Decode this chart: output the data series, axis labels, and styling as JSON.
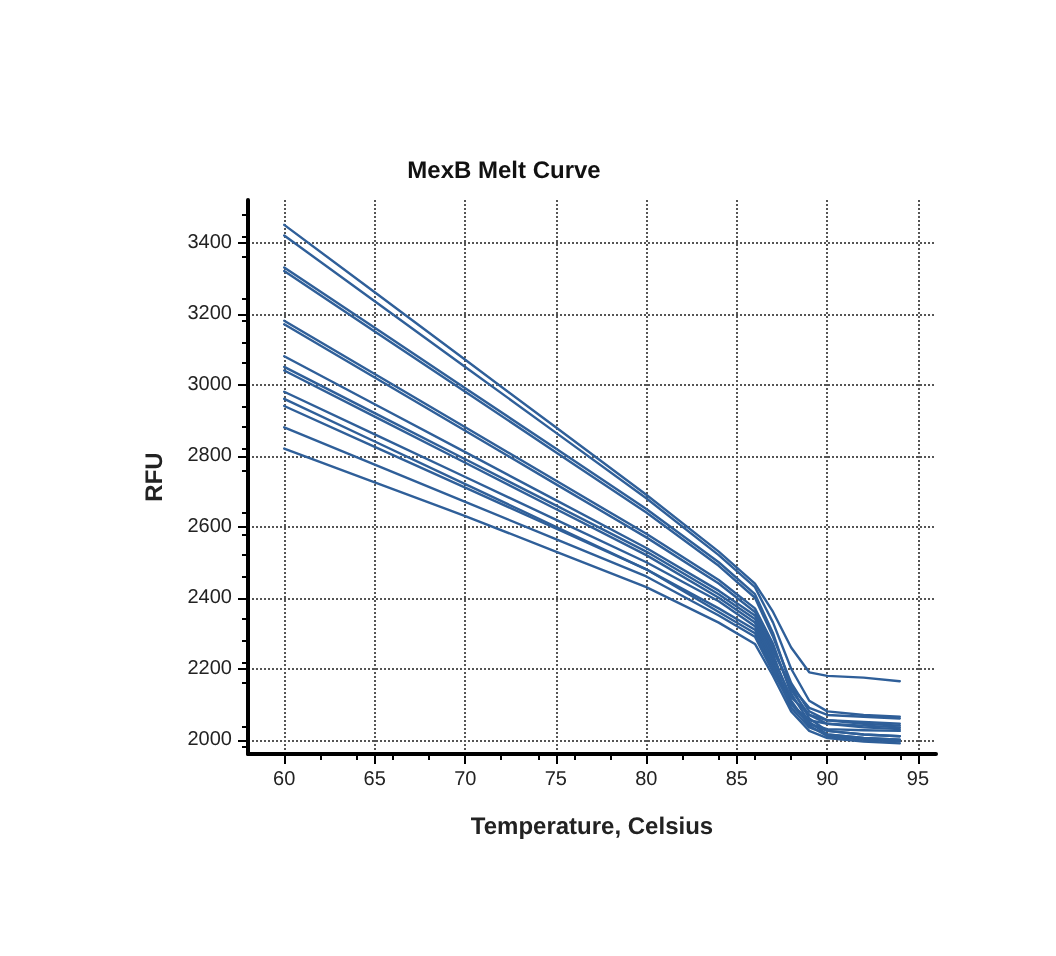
{
  "chart_data": {
    "type": "line",
    "title": "MexB Melt Curve",
    "xlabel": "Temperature, Celsius",
    "ylabel": "RFU",
    "x": [
      60,
      65,
      70,
      75,
      80,
      84,
      86,
      87,
      88,
      89,
      90,
      92,
      94
    ],
    "xlim": [
      58,
      96
    ],
    "xticks": [
      60,
      65,
      70,
      75,
      80,
      85,
      90,
      95
    ],
    "ylim": [
      1960,
      3520
    ],
    "yticks": [
      2000,
      2200,
      2400,
      2600,
      2800,
      3000,
      3200,
      3400
    ],
    "grid": true,
    "marker": "none",
    "line_style": "solid",
    "series": [
      {
        "color": "#2f5f99",
        "values": [
          3450,
          3260,
          3070,
          2880,
          2690,
          2530,
          2440,
          2360,
          2260,
          2190,
          2180,
          2175,
          2165
        ]
      },
      {
        "color": "#2f5f99",
        "values": [
          3420,
          3235,
          3050,
          2865,
          2680,
          2520,
          2430,
          2330,
          2200,
          2110,
          2080,
          2070,
          2065
        ]
      },
      {
        "color": "#2f5f99",
        "values": [
          3330,
          3160,
          2990,
          2820,
          2650,
          2500,
          2410,
          2300,
          2150,
          2060,
          2025,
          2015,
          2010
        ]
      },
      {
        "color": "#2f5f99",
        "values": [
          3320,
          3150,
          2980,
          2810,
          2640,
          2490,
          2400,
          2290,
          2160,
          2080,
          2055,
          2045,
          2040
        ]
      },
      {
        "color": "#2f5f99",
        "values": [
          3180,
          3030,
          2880,
          2730,
          2580,
          2450,
          2370,
          2270,
          2130,
          2050,
          2015,
          2005,
          2000
        ]
      },
      {
        "color": "#2f5f99",
        "values": [
          3170,
          3020,
          2870,
          2720,
          2570,
          2440,
          2360,
          2260,
          2140,
          2070,
          2045,
          2035,
          2030
        ]
      },
      {
        "color": "#2f5f99",
        "values": [
          3080,
          2945,
          2810,
          2675,
          2540,
          2420,
          2350,
          2250,
          2150,
          2090,
          2070,
          2065,
          2060
        ]
      },
      {
        "color": "#2f5f99",
        "values": [
          3050,
          2920,
          2790,
          2660,
          2530,
          2410,
          2340,
          2240,
          2110,
          2040,
          2010,
          2000,
          1995
        ]
      },
      {
        "color": "#2f5f99",
        "values": [
          3040,
          2910,
          2780,
          2650,
          2520,
          2400,
          2330,
          2230,
          2120,
          2070,
          2055,
          2050,
          2045
        ]
      },
      {
        "color": "#2f5f99",
        "values": [
          2980,
          2860,
          2740,
          2620,
          2500,
          2390,
          2320,
          2220,
          2100,
          2045,
          2025,
          2015,
          2010
        ]
      },
      {
        "color": "#2f5f99",
        "values": [
          2960,
          2840,
          2720,
          2600,
          2480,
          2370,
          2310,
          2210,
          2100,
          2055,
          2045,
          2040,
          2035
        ]
      },
      {
        "color": "#2f5f99",
        "values": [
          2940,
          2825,
          2710,
          2595,
          2480,
          2360,
          2300,
          2200,
          2090,
          2035,
          2015,
          2005,
          2000
        ]
      },
      {
        "color": "#2f5f99",
        "values": [
          2880,
          2775,
          2670,
          2565,
          2460,
          2350,
          2290,
          2190,
          2100,
          2045,
          2030,
          2027,
          2025
        ]
      },
      {
        "color": "#2f5f99",
        "values": [
          2820,
          2725,
          2630,
          2530,
          2430,
          2330,
          2270,
          2180,
          2080,
          2025,
          2005,
          1995,
          1990
        ]
      }
    ]
  }
}
